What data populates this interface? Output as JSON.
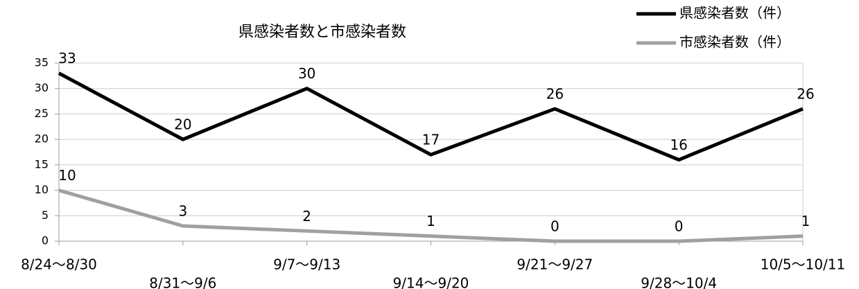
{
  "chart_data": {
    "type": "line",
    "title": "県感染者数と市感染者数",
    "categories": [
      "8/24～8/30",
      "8/31～9/6",
      "9/7～9/13",
      "9/14～9/20",
      "9/21～9/27",
      "9/28～10/4",
      "10/5～10/11"
    ],
    "series": [
      {
        "name": "県感染者数（件）",
        "color": "#000000",
        "values": [
          33,
          20,
          30,
          17,
          26,
          16,
          26
        ]
      },
      {
        "name": "市感染者数（件）",
        "color": "#a0a0a0",
        "values": [
          10,
          3,
          2,
          1,
          0,
          0,
          1
        ]
      }
    ],
    "ylim": [
      0,
      35
    ],
    "yticks": [
      0,
      5,
      10,
      15,
      20,
      25,
      30,
      35
    ],
    "grid": true,
    "legend": "top-right"
  }
}
